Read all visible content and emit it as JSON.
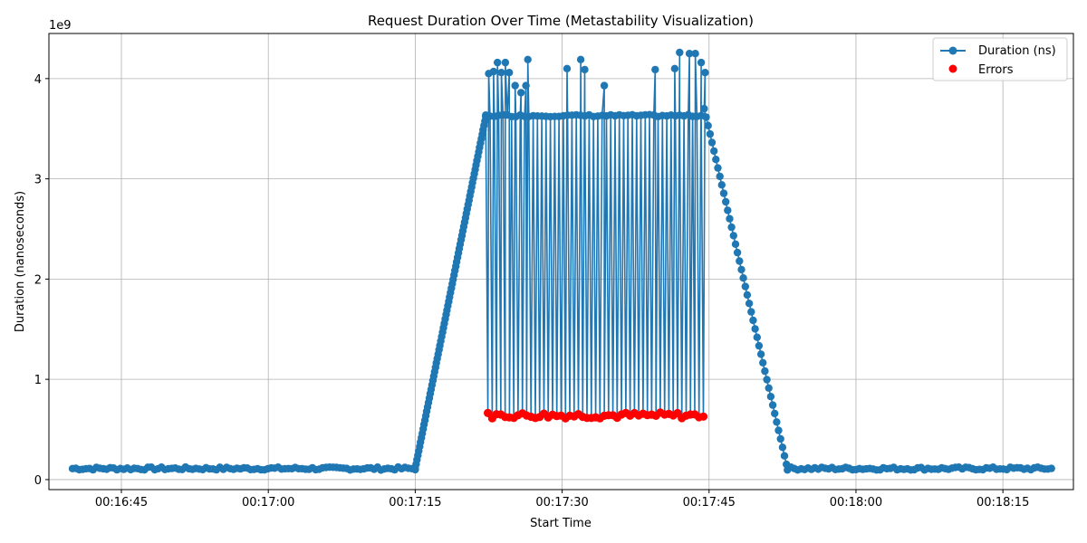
{
  "chart_data": {
    "type": "line",
    "title": "Request Duration Over Time (Metastability Visualization)",
    "xlabel": "Start Time",
    "ylabel": "Duration (nanoseconds)",
    "y_offset_label": "1e9",
    "x_ticks": [
      "00:16:45",
      "00:17:00",
      "00:17:15",
      "00:17:30",
      "00:17:45",
      "00:18:00",
      "00:18:15"
    ],
    "y_ticks": [
      "0",
      "1",
      "2",
      "3",
      "4"
    ],
    "xlim": [
      "00:16:37.6",
      "00:18:22.2"
    ],
    "ylim": [
      -0.1,
      4.45
    ],
    "grid": true,
    "legend": {
      "placement": "top-right",
      "entries": [
        {
          "label": "Duration (ns)",
          "color": "#1f77b4",
          "marker": "line-circle"
        },
        {
          "label": "Errors",
          "color": "#ff0000",
          "marker": "circle"
        }
      ]
    },
    "series": [
      {
        "name": "Duration (ns)",
        "color": "#1f77b4",
        "segments": [
          {
            "x_start": "00:16:40.0",
            "x_end": "00:17:15.0",
            "y": 0.11
          },
          {
            "x_start": "00:17:15.0",
            "x_end": "00:17:22.2",
            "y_start": 0.11,
            "y_end": 3.62
          },
          {
            "x_start": "00:17:22.2",
            "x_end": "00:17:44.5",
            "y_high": 3.63,
            "y_low": 0.64
          },
          {
            "x_start": "00:17:44.5",
            "x_end": "00:17:53.0",
            "y_start": 3.7,
            "y_end": 0.11
          },
          {
            "x_start": "00:17:53.0",
            "x_end": "00:18:20.0",
            "y": 0.11
          }
        ],
        "spikes": [
          {
            "x": "00:17:22.5",
            "y": 4.05
          },
          {
            "x": "00:17:23.0",
            "y": 4.07
          },
          {
            "x": "00:17:23.4",
            "y": 4.16
          },
          {
            "x": "00:17:23.8",
            "y": 4.06
          },
          {
            "x": "00:17:24.2",
            "y": 4.16
          },
          {
            "x": "00:17:24.6",
            "y": 4.06
          },
          {
            "x": "00:17:25.2",
            "y": 3.93
          },
          {
            "x": "00:17:25.8",
            "y": 3.86
          },
          {
            "x": "00:17:26.3",
            "y": 3.93
          },
          {
            "x": "00:17:26.5",
            "y": 4.19
          },
          {
            "x": "00:17:30.5",
            "y": 4.1
          },
          {
            "x": "00:17:31.9",
            "y": 4.19
          },
          {
            "x": "00:17:32.3",
            "y": 4.09
          },
          {
            "x": "00:17:34.3",
            "y": 3.93
          },
          {
            "x": "00:17:39.5",
            "y": 4.09
          },
          {
            "x": "00:17:41.5",
            "y": 4.1
          },
          {
            "x": "00:17:42.0",
            "y": 4.26
          },
          {
            "x": "00:17:43.0",
            "y": 4.25
          },
          {
            "x": "00:17:43.6",
            "y": 4.25
          },
          {
            "x": "00:17:44.2",
            "y": 4.16
          },
          {
            "x": "00:17:44.6",
            "y": 4.06
          }
        ]
      },
      {
        "name": "Errors",
        "color": "#ff0000",
        "type": "scatter",
        "x_range": [
          "00:17:22.2",
          "00:17:44.5"
        ],
        "y_min": 0.61,
        "y_max": 0.67
      }
    ]
  }
}
